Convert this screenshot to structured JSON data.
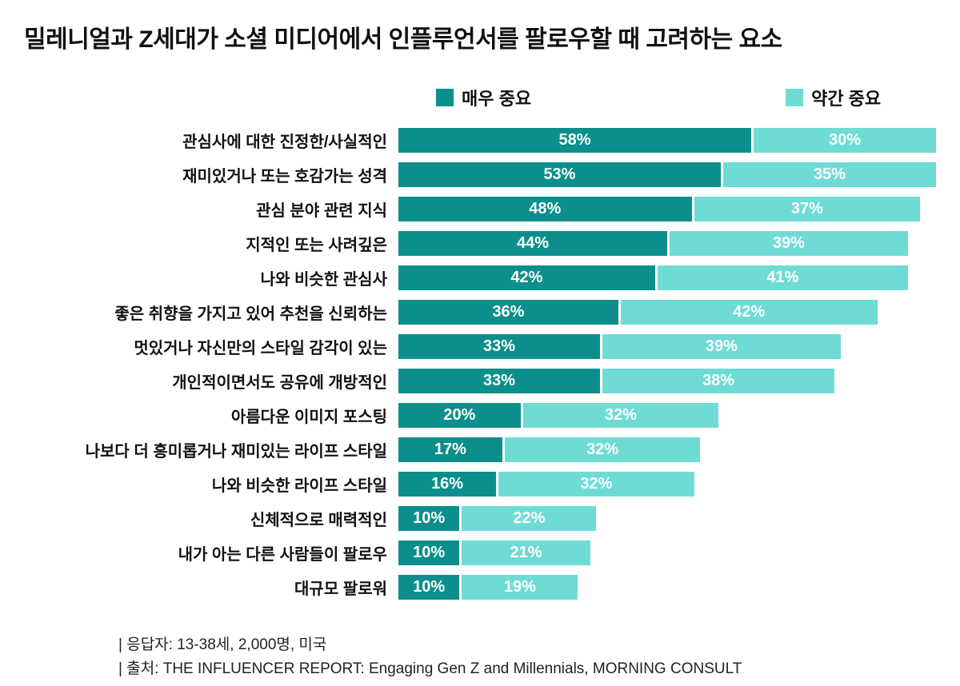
{
  "title": "밀레니얼과 Z세대가 소셜 미디어에서 인플루언서를 팔로우할 때 고려하는 요소",
  "legend": [
    {
      "label": "매우 중요",
      "color": "#0c8f8c"
    },
    {
      "label": "약간 중요",
      "color": "#6edcd5"
    }
  ],
  "footer": {
    "line1": "|  응답자: 13-38세, 2,000명, 미국",
    "line2": "|  출처: THE INFLUENCER REPORT: Engaging Gen Z and Millennials, MORNING CONSULT"
  },
  "chart_data": {
    "type": "bar",
    "orientation": "horizontal",
    "stacked": true,
    "title": "밀레니얼과 Z세대가 소셜 미디어에서 인플루언서를 팔로우할 때 고려하는 요소",
    "categories": [
      "관심사에 대한 진정한/사실적인",
      "재미있거나 또는 호감가는 성격",
      "관심 분야 관련 지식",
      "지적인 또는 사려깊은",
      "나와 비슷한 관심사",
      "좋은 취향을 가지고 있어 추천을 신뢰하는",
      "멋있거나 자신만의 스타일 감각이 있는",
      "개인적이면서도 공유에 개방적인",
      "아름다운 이미지 포스팅",
      "나보다 더 흥미롭거나 재미있는 라이프 스타일",
      "나와 비슷한 라이프 스타일",
      "신체적으로 매력적인",
      "내가 아는 다른 사람들이 팔로우",
      "대규모 팔로워"
    ],
    "series": [
      {
        "name": "매우 중요",
        "color": "#0c8f8c",
        "values": [
          58,
          53,
          48,
          44,
          42,
          36,
          33,
          33,
          20,
          17,
          16,
          10,
          10,
          10
        ]
      },
      {
        "name": "약간 중요",
        "color": "#6edcd5",
        "values": [
          30,
          35,
          37,
          39,
          41,
          42,
          39,
          38,
          32,
          32,
          32,
          22,
          21,
          19
        ]
      }
    ],
    "value_suffix": "%",
    "xmax": 88,
    "grid": false,
    "legend_position": "top"
  }
}
